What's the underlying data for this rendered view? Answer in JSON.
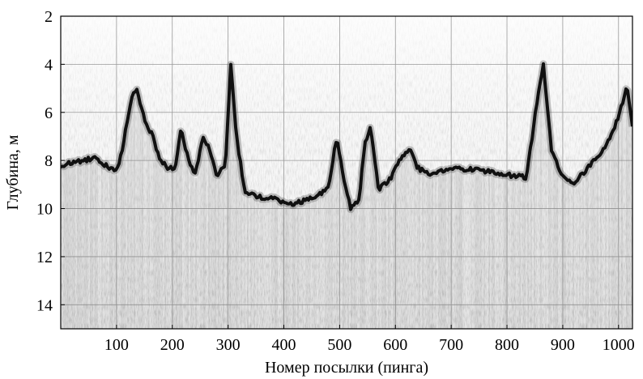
{
  "chart_data": {
    "type": "heatmap",
    "subtype": "echogram (sonar depth vs ping number, grayscale intensity)",
    "xlabel": "Номер посылки (пинга)",
    "ylabel": "Глубина, м",
    "xlim": [
      0,
      1025
    ],
    "ylim": [
      2,
      15
    ],
    "y_inverted": true,
    "x_ticks": [
      100,
      200,
      300,
      400,
      500,
      600,
      700,
      800,
      900,
      1000
    ],
    "y_ticks": [
      2,
      4,
      6,
      8,
      10,
      12,
      14
    ],
    "grid": true,
    "colormap": "grayscale (white = low, black = high backscatter)",
    "bottom_trace": {
      "name": "",
      "x": [
        0,
        40,
        60,
        100,
        110,
        125,
        135,
        150,
        165,
        175,
        190,
        205,
        215,
        225,
        240,
        255,
        265,
        280,
        295,
        305,
        315,
        330,
        350,
        380,
        420,
        460,
        480,
        495,
        505,
        520,
        535,
        545,
        555,
        570,
        590,
        610,
        625,
        640,
        660,
        700,
        750,
        800,
        835,
        850,
        865,
        880,
        900,
        920,
        950,
        980,
        1000,
        1015,
        1025
      ],
      "y": [
        8.2,
        8.0,
        7.9,
        8.5,
        7.6,
        5.6,
        5.0,
        6.3,
        7.0,
        7.8,
        8.3,
        8.3,
        6.7,
        7.6,
        8.7,
        7.0,
        7.4,
        8.6,
        8.2,
        4.0,
        7.0,
        9.3,
        9.5,
        9.6,
        9.8,
        9.5,
        9.1,
        7.0,
        8.5,
        10.0,
        9.6,
        7.3,
        6.6,
        9.2,
        8.8,
        7.9,
        7.5,
        8.3,
        8.6,
        8.3,
        8.4,
        8.6,
        8.7,
        6.2,
        4.0,
        7.6,
        8.7,
        8.9,
        8.2,
        7.3,
        6.2,
        4.9,
        6.5
      ]
    }
  }
}
